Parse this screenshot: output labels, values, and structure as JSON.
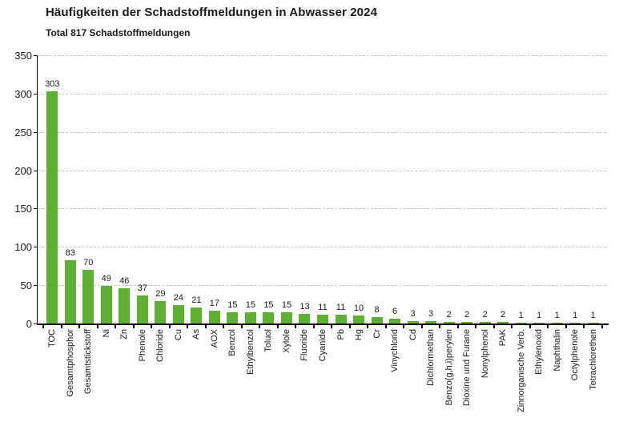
{
  "header": {
    "title": "Häufigkeiten der Schadstoffmeldungen in Abwasser 2024",
    "subtitle": "Total 817 Schadstoffmeldungen"
  },
  "chart_data": {
    "type": "bar",
    "title": "Häufigkeiten der Schadstoffmeldungen in Abwasser 2024",
    "subtitle": "Total 817 Schadstoffmeldungen",
    "total_reports": 817,
    "categories": [
      "TOC",
      "Gesamtphosphor",
      "Gesamtstickstoff",
      "Ni",
      "Zn",
      "Phenole",
      "Chloride",
      "Cu",
      "As",
      "AOX",
      "Benzol",
      "Ethylbenzol",
      "Toluol",
      "Xylole",
      "Fluoride",
      "Cyanide",
      "Pb",
      "Hg",
      "Cr",
      "Vinychlorid",
      "Cd",
      "Dichlormethan",
      "Benzo(g,h,i)perylen",
      "Dioxine und Furane",
      "Nonylphenol",
      "PAK",
      "Zinnorganische Verb.",
      "Ethylenoxid",
      "Naphthalin",
      "Octylphenole",
      "Tetrachlorethen"
    ],
    "values": [
      303,
      83,
      70,
      49,
      46,
      37,
      29,
      24,
      21,
      17,
      15,
      15,
      15,
      15,
      13,
      11,
      11,
      10,
      8,
      6,
      3,
      3,
      2,
      2,
      2,
      2,
      1,
      1,
      1,
      1,
      1
    ],
    "xlabel": "",
    "ylabel": "",
    "ylim": [
      0,
      350
    ],
    "yticks": [
      0,
      50,
      100,
      150,
      200,
      250,
      300,
      350
    ],
    "grid": "horizontal-dashed",
    "legend_position": "none",
    "value_labels_shown": true,
    "x_tick_label_rotation_deg": 90,
    "bar_color": "#5eb130"
  },
  "colors": {
    "bar": "#5eb130",
    "grid": "#c6c6c6",
    "axis": "#000000",
    "text": "#1a1a1a",
    "background": "#ffffff"
  }
}
